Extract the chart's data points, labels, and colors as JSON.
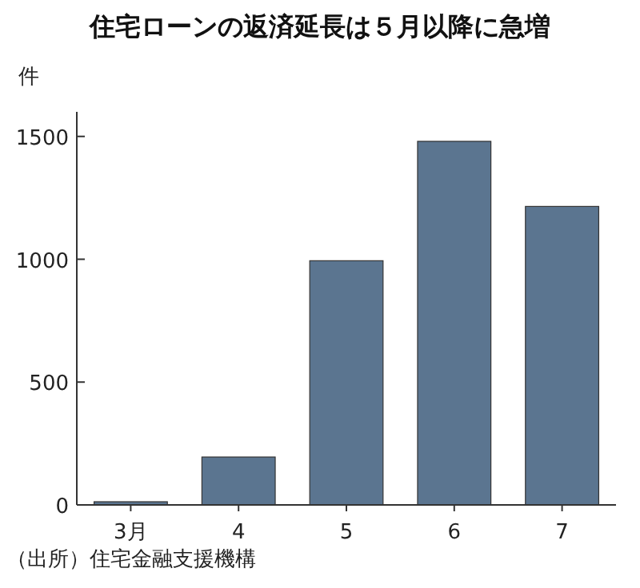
{
  "chart_data": {
    "type": "bar",
    "title": "住宅ローンの返済延長は５月以降に急増",
    "ylabel": "件",
    "categories": [
      "3月",
      "4",
      "5",
      "6",
      "7"
    ],
    "values": [
      13,
      195,
      994,
      1480,
      1215
    ],
    "color": "#5b7590",
    "ylim": [
      0,
      1600
    ],
    "yticks": [
      0,
      500,
      1000,
      1500
    ],
    "annotations": [
      "（出所）住宅金融支援機構"
    ]
  }
}
